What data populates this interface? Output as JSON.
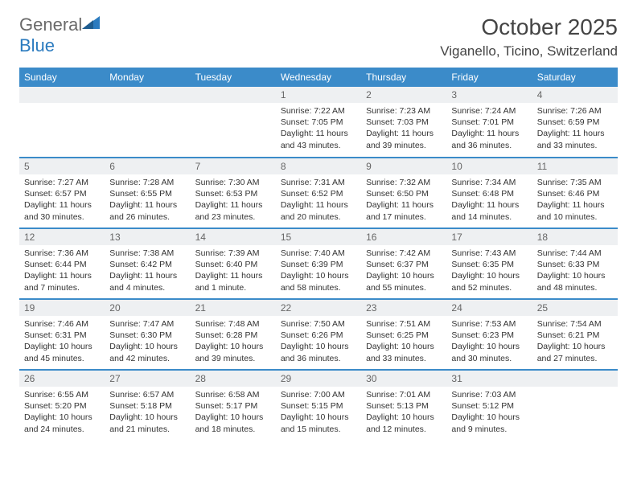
{
  "logo": {
    "text_gray": "General",
    "text_blue": "Blue"
  },
  "title": "October 2025",
  "location": "Viganello, Ticino, Switzerland",
  "colors": {
    "header_bg": "#3b8bc9",
    "header_text": "#ffffff",
    "daynum_bg": "#eef0f2",
    "row_border": "#3b8bc9",
    "body_text": "#333333",
    "logo_gray": "#6a6a6a",
    "logo_blue": "#2b7bbf"
  },
  "day_headers": [
    "Sunday",
    "Monday",
    "Tuesday",
    "Wednesday",
    "Thursday",
    "Friday",
    "Saturday"
  ],
  "weeks": [
    [
      {
        "n": "",
        "sr": "",
        "ss": "",
        "dl": ""
      },
      {
        "n": "",
        "sr": "",
        "ss": "",
        "dl": ""
      },
      {
        "n": "",
        "sr": "",
        "ss": "",
        "dl": ""
      },
      {
        "n": "1",
        "sr": "7:22 AM",
        "ss": "7:05 PM",
        "dl": "11 hours and 43 minutes."
      },
      {
        "n": "2",
        "sr": "7:23 AM",
        "ss": "7:03 PM",
        "dl": "11 hours and 39 minutes."
      },
      {
        "n": "3",
        "sr": "7:24 AM",
        "ss": "7:01 PM",
        "dl": "11 hours and 36 minutes."
      },
      {
        "n": "4",
        "sr": "7:26 AM",
        "ss": "6:59 PM",
        "dl": "11 hours and 33 minutes."
      }
    ],
    [
      {
        "n": "5",
        "sr": "7:27 AM",
        "ss": "6:57 PM",
        "dl": "11 hours and 30 minutes."
      },
      {
        "n": "6",
        "sr": "7:28 AM",
        "ss": "6:55 PM",
        "dl": "11 hours and 26 minutes."
      },
      {
        "n": "7",
        "sr": "7:30 AM",
        "ss": "6:53 PM",
        "dl": "11 hours and 23 minutes."
      },
      {
        "n": "8",
        "sr": "7:31 AM",
        "ss": "6:52 PM",
        "dl": "11 hours and 20 minutes."
      },
      {
        "n": "9",
        "sr": "7:32 AM",
        "ss": "6:50 PM",
        "dl": "11 hours and 17 minutes."
      },
      {
        "n": "10",
        "sr": "7:34 AM",
        "ss": "6:48 PM",
        "dl": "11 hours and 14 minutes."
      },
      {
        "n": "11",
        "sr": "7:35 AM",
        "ss": "6:46 PM",
        "dl": "11 hours and 10 minutes."
      }
    ],
    [
      {
        "n": "12",
        "sr": "7:36 AM",
        "ss": "6:44 PM",
        "dl": "11 hours and 7 minutes."
      },
      {
        "n": "13",
        "sr": "7:38 AM",
        "ss": "6:42 PM",
        "dl": "11 hours and 4 minutes."
      },
      {
        "n": "14",
        "sr": "7:39 AM",
        "ss": "6:40 PM",
        "dl": "11 hours and 1 minute."
      },
      {
        "n": "15",
        "sr": "7:40 AM",
        "ss": "6:39 PM",
        "dl": "10 hours and 58 minutes."
      },
      {
        "n": "16",
        "sr": "7:42 AM",
        "ss": "6:37 PM",
        "dl": "10 hours and 55 minutes."
      },
      {
        "n": "17",
        "sr": "7:43 AM",
        "ss": "6:35 PM",
        "dl": "10 hours and 52 minutes."
      },
      {
        "n": "18",
        "sr": "7:44 AM",
        "ss": "6:33 PM",
        "dl": "10 hours and 48 minutes."
      }
    ],
    [
      {
        "n": "19",
        "sr": "7:46 AM",
        "ss": "6:31 PM",
        "dl": "10 hours and 45 minutes."
      },
      {
        "n": "20",
        "sr": "7:47 AM",
        "ss": "6:30 PM",
        "dl": "10 hours and 42 minutes."
      },
      {
        "n": "21",
        "sr": "7:48 AM",
        "ss": "6:28 PM",
        "dl": "10 hours and 39 minutes."
      },
      {
        "n": "22",
        "sr": "7:50 AM",
        "ss": "6:26 PM",
        "dl": "10 hours and 36 minutes."
      },
      {
        "n": "23",
        "sr": "7:51 AM",
        "ss": "6:25 PM",
        "dl": "10 hours and 33 minutes."
      },
      {
        "n": "24",
        "sr": "7:53 AM",
        "ss": "6:23 PM",
        "dl": "10 hours and 30 minutes."
      },
      {
        "n": "25",
        "sr": "7:54 AM",
        "ss": "6:21 PM",
        "dl": "10 hours and 27 minutes."
      }
    ],
    [
      {
        "n": "26",
        "sr": "6:55 AM",
        "ss": "5:20 PM",
        "dl": "10 hours and 24 minutes."
      },
      {
        "n": "27",
        "sr": "6:57 AM",
        "ss": "5:18 PM",
        "dl": "10 hours and 21 minutes."
      },
      {
        "n": "28",
        "sr": "6:58 AM",
        "ss": "5:17 PM",
        "dl": "10 hours and 18 minutes."
      },
      {
        "n": "29",
        "sr": "7:00 AM",
        "ss": "5:15 PM",
        "dl": "10 hours and 15 minutes."
      },
      {
        "n": "30",
        "sr": "7:01 AM",
        "ss": "5:13 PM",
        "dl": "10 hours and 12 minutes."
      },
      {
        "n": "31",
        "sr": "7:03 AM",
        "ss": "5:12 PM",
        "dl": "10 hours and 9 minutes."
      },
      {
        "n": "",
        "sr": "",
        "ss": "",
        "dl": ""
      }
    ]
  ],
  "labels": {
    "sunrise": "Sunrise:",
    "sunset": "Sunset:",
    "daylight": "Daylight:"
  }
}
